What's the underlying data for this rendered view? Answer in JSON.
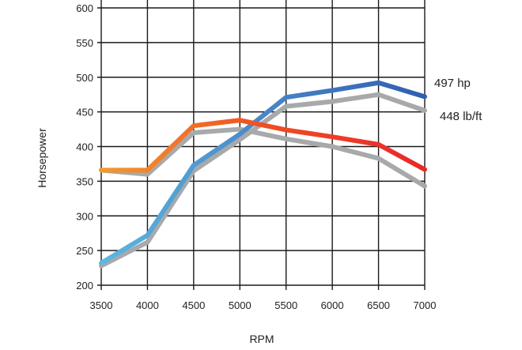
{
  "chart_data": {
    "type": "line",
    "title": "",
    "xlabel": "RPM",
    "ylabel": "Horsepower",
    "x": [
      3500,
      4000,
      4500,
      5000,
      5500,
      6000,
      6500,
      7000
    ],
    "x_tick_labels": [
      "3500",
      "4000",
      "4500",
      "5000",
      "5500",
      "6000",
      "6500",
      "7000"
    ],
    "y_tick_labels": [
      "200",
      "250",
      "300",
      "350",
      "400",
      "450",
      "500",
      "550",
      "600"
    ],
    "xlim": [
      3500,
      7000
    ],
    "ylim": [
      200,
      600
    ],
    "grid": true,
    "series": [
      {
        "label": "497 hp",
        "values": [
          232,
          272,
          373,
          418,
          471,
          481,
          492,
          472
        ],
        "colors": [
          "#5bb8e0",
          "#4a86c8",
          "#2f5fb0"
        ],
        "comparison_values": [
          228,
          262,
          365,
          410,
          458,
          465,
          475,
          452
        ]
      },
      {
        "label": "448 lb/ft",
        "values": [
          366,
          366,
          430,
          438,
          424,
          414,
          403,
          367
        ],
        "colors": [
          "#f39a2c",
          "#ef4e23",
          "#e8282b"
        ],
        "comparison_values": [
          366,
          360,
          420,
          425,
          411,
          400,
          383,
          343
        ]
      }
    ],
    "comparison_color": "#a7a9ab"
  }
}
